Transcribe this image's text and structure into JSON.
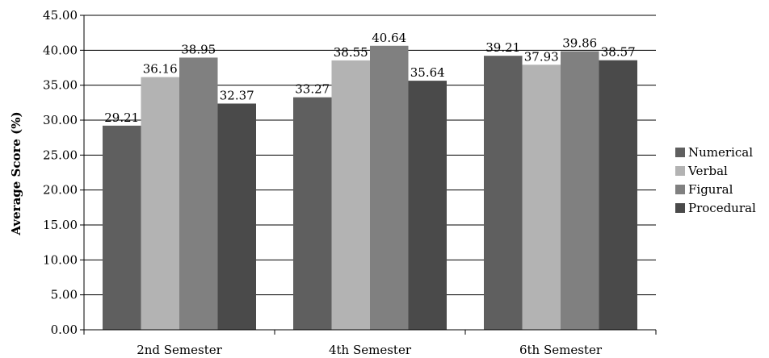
{
  "chart_data": {
    "type": "bar",
    "title": "",
    "xlabel": "",
    "ylabel": "Average Score (%)",
    "categories": [
      "2nd Semester",
      "4th Semester",
      "6th Semester"
    ],
    "series": [
      {
        "name": "Numerical",
        "values": [
          29.21,
          33.27,
          39.21
        ],
        "labels": [
          "29.21",
          "33.27",
          "39.21"
        ],
        "color": "#5f5f5f"
      },
      {
        "name": "Verbal",
        "values": [
          36.16,
          38.55,
          37.93
        ],
        "labels": [
          "36.16",
          "38.55",
          "37.93"
        ],
        "color": "#b3b3b3"
      },
      {
        "name": "Figural",
        "values": [
          38.95,
          40.64,
          39.86
        ],
        "labels": [
          "38.95",
          "40.64",
          "39.86"
        ],
        "color": "#808080"
      },
      {
        "name": "Procedural",
        "values": [
          32.37,
          35.64,
          38.57
        ],
        "labels": [
          "32.37",
          "35.64",
          "38.57"
        ],
        "color": "#4a4a4a"
      }
    ],
    "ylim": [
      0,
      45
    ],
    "yticks": [
      0,
      5,
      10,
      15,
      20,
      25,
      30,
      35,
      40,
      45
    ],
    "ytick_labels": [
      "0.00",
      "5.00",
      "10.00",
      "15.00",
      "20.00",
      "25.00",
      "30.00",
      "35.00",
      "40.00",
      "45.00"
    ],
    "grid": true,
    "legend_position": "right"
  }
}
